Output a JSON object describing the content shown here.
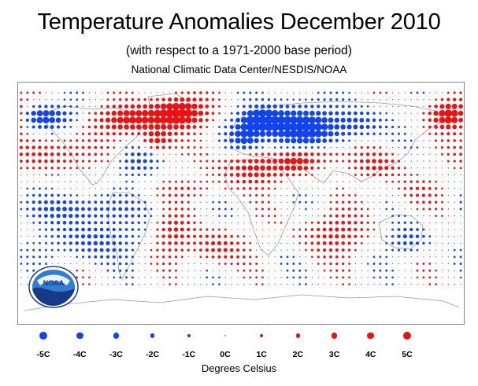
{
  "title": "Temperature Anomalies December 2010",
  "subtitle": "(with respect to a 1971-2000 base period)",
  "source": "National Climatic Data Center/NESDIS/NOAA",
  "logo_text": "NOAA",
  "units_label": "Degrees Celsius",
  "colors": {
    "warm": "#ee1111",
    "cold": "#1144ee",
    "coast": "#9a9a9a"
  },
  "legend": [
    {
      "label": "-5C",
      "value": -5
    },
    {
      "label": "-4C",
      "value": -4
    },
    {
      "label": "-3C",
      "value": -3
    },
    {
      "label": "-2C",
      "value": -2
    },
    {
      "label": "-1C",
      "value": -1
    },
    {
      "label": "0C",
      "value": 0
    },
    {
      "label": "1C",
      "value": 1
    },
    {
      "label": "2C",
      "value": 2
    },
    {
      "label": "3C",
      "value": 3
    },
    {
      "label": "4C",
      "value": 4
    },
    {
      "label": "5C",
      "value": 5
    }
  ],
  "anomaly_regions": [
    {
      "name": "western-russia-cold",
      "lat": 57,
      "lon": 45,
      "rlat": 15,
      "rlon": 35,
      "value": -5
    },
    {
      "name": "scandinavia-cold",
      "lat": 63,
      "lon": 15,
      "rlat": 8,
      "rlon": 15,
      "value": -4
    },
    {
      "name": "western-europe-cold",
      "lat": 50,
      "lon": 3,
      "rlat": 10,
      "rlon": 12,
      "value": -3
    },
    {
      "name": "central-siberia-cold",
      "lat": 60,
      "lon": 95,
      "rlat": 10,
      "rlon": 20,
      "value": -2
    },
    {
      "name": "alaska-cold",
      "lat": 65,
      "lon": -160,
      "rlat": 8,
      "rlon": 22,
      "value": -4
    },
    {
      "name": "southeast-us-cold",
      "lat": 32,
      "lon": -85,
      "rlat": 10,
      "rlon": 15,
      "value": -2
    },
    {
      "name": "greenland-warm",
      "lat": 68,
      "lon": -50,
      "rlat": 11,
      "rlon": 22,
      "value": 5
    },
    {
      "name": "canada-north-warm",
      "lat": 63,
      "lon": -90,
      "rlat": 10,
      "rlon": 25,
      "value": 4
    },
    {
      "name": "eastern-canada-warm",
      "lat": 48,
      "lon": -68,
      "rlat": 8,
      "rlon": 12,
      "value": 3
    },
    {
      "name": "far-east-russia-warm",
      "lat": 66,
      "lon": 170,
      "rlat": 10,
      "rlon": 16,
      "value": 5
    },
    {
      "name": "north-africa-warm",
      "lat": 28,
      "lon": 10,
      "rlat": 12,
      "rlon": 25,
      "value": 3
    },
    {
      "name": "middle-east-warm",
      "lat": 32,
      "lon": 45,
      "rlat": 8,
      "rlon": 15,
      "value": 3
    },
    {
      "name": "central-asia-warm",
      "lat": 38,
      "lon": 65,
      "rlat": 8,
      "rlon": 20,
      "value": 2
    },
    {
      "name": "china-warm",
      "lat": 30,
      "lon": 110,
      "rlat": 10,
      "rlon": 20,
      "value": 2
    },
    {
      "name": "north-pacific-warm",
      "lat": 38,
      "lon": -150,
      "rlat": 12,
      "rlon": 30,
      "value": 2
    },
    {
      "name": "equatorial-pacific-cold",
      "lat": -2,
      "lon": -130,
      "rlat": 10,
      "rlon": 45,
      "value": -2
    },
    {
      "name": "south-pacific-cold",
      "lat": -25,
      "lon": -120,
      "rlat": 15,
      "rlon": 35,
      "value": -2
    },
    {
      "name": "south-america-warm",
      "lat": -20,
      "lon": -55,
      "rlat": 15,
      "rlon": 15,
      "value": 2
    },
    {
      "name": "south-atlantic-warm",
      "lat": -30,
      "lon": -20,
      "rlat": 12,
      "rlon": 20,
      "value": 2
    },
    {
      "name": "indian-ocean-warm",
      "lat": -20,
      "lon": 75,
      "rlat": 15,
      "rlon": 25,
      "value": 2
    },
    {
      "name": "australia-cold",
      "lat": -25,
      "lon": 135,
      "rlat": 10,
      "rlon": 15,
      "value": -2
    },
    {
      "name": "tropical-atlantic-warm",
      "lat": 12,
      "lon": -40,
      "rlat": 8,
      "rlon": 25,
      "value": 1
    },
    {
      "name": "west-pacific-warm",
      "lat": 10,
      "lon": 140,
      "rlat": 12,
      "rlon": 20,
      "value": 1
    }
  ]
}
